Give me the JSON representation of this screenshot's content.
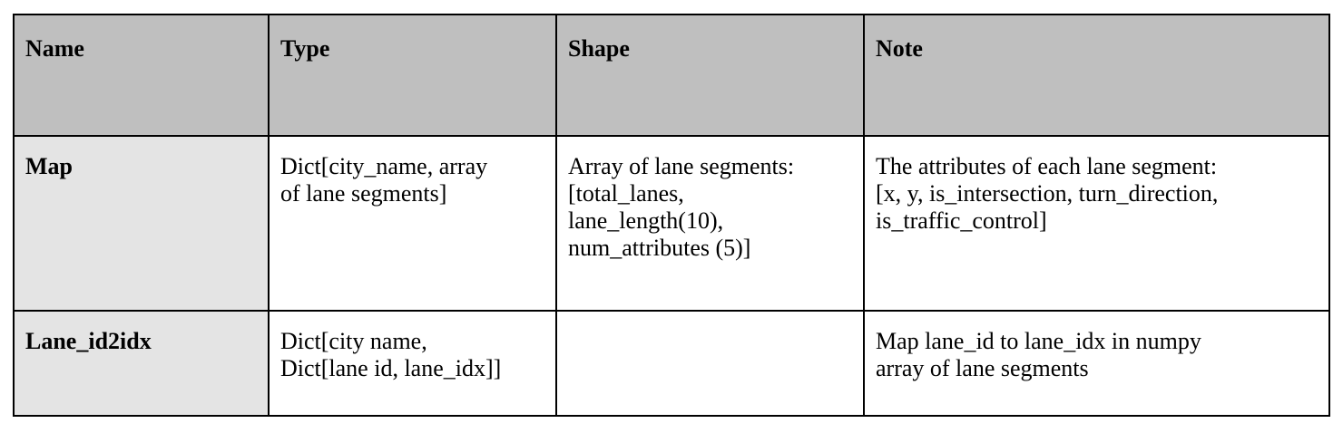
{
  "table": {
    "headers": [
      "Name",
      "Type",
      "Shape",
      "Note"
    ],
    "rows": [
      {
        "name": "Map",
        "type": "Dict[city_name, array\nof lane segments]",
        "shape": "Array of lane segments:\n[total_lanes,\nlane_length(10),\nnum_attributes (5)]",
        "note": "The attributes of each lane segment:\n[x, y, is_intersection, turn_direction,\nis_traffic_control]"
      },
      {
        "name": "Lane_id2idx",
        "type": "Dict[city name,\nDict[lane id, lane_idx]]",
        "shape": "",
        "note": "Map lane_id to lane_idx in numpy\narray of lane segments"
      }
    ]
  },
  "colors": {
    "header_bg": "#bfbfbf",
    "name_col_bg": "#e4e4e4",
    "border": "#000000"
  }
}
